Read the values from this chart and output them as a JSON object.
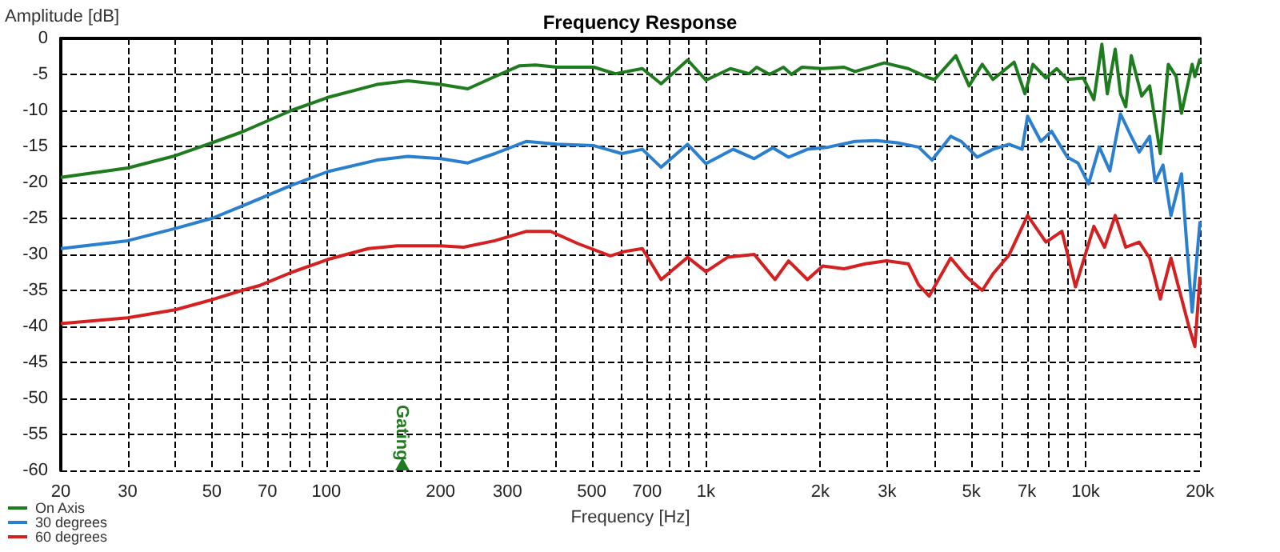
{
  "chart_data": {
    "type": "line",
    "title": "Frequency Response",
    "xlabel": "Frequency [Hz]",
    "ylabel": "Amplitude [dB]",
    "log": "x",
    "grid": true,
    "legend": "bottom left",
    "marker": "none",
    "line_style": "solid",
    "xlim": [
      20,
      20000
    ],
    "ylim": [
      -60,
      0
    ],
    "xticks": [
      20,
      30,
      {
        "value": 40,
        "label": null
      },
      50,
      {
        "value": 60,
        "label": null
      },
      70,
      {
        "value": 80,
        "label": null
      },
      {
        "value": 90,
        "label": null
      },
      100,
      200,
      300,
      {
        "value": 400,
        "label": null
      },
      500,
      {
        "value": 600,
        "label": null
      },
      700,
      {
        "value": 800,
        "label": null
      },
      {
        "value": 900,
        "label": null
      },
      {
        "value": 1000,
        "label": "1k"
      },
      {
        "value": 2000,
        "label": "2k"
      },
      {
        "value": 3000,
        "label": "3k"
      },
      {
        "value": 4000,
        "label": null
      },
      {
        "value": 5000,
        "label": "5k"
      },
      {
        "value": 6000,
        "label": null
      },
      {
        "value": 7000,
        "label": "7k"
      },
      {
        "value": 8000,
        "label": null
      },
      {
        "value": 9000,
        "label": null
      },
      {
        "value": 10000,
        "label": "10k"
      },
      {
        "value": 20000,
        "label": "20k"
      }
    ],
    "yticks": [
      0,
      -5,
      -10,
      -15,
      -20,
      -25,
      -30,
      -35,
      -40,
      -45,
      -50,
      -55,
      -60
    ],
    "annotations": [
      "Gating"
    ],
    "series": [
      {
        "name": "On Axis",
        "color": "#1e7b1e",
        "x": [
          20,
          30,
          40,
          50,
          60,
          81,
          101,
          136,
          164,
          200,
          236,
          278,
          323,
          356,
          405,
          507,
          577,
          680,
          762,
          895,
          1000,
          1160,
          1300,
          1360,
          1470,
          1600,
          1680,
          1790,
          2030,
          2310,
          2470,
          2950,
          3410,
          3870,
          4000,
          4550,
          4930,
          5340,
          5700,
          6480,
          6920,
          7260,
          7860,
          8390,
          8950,
          9860,
          10510,
          11030,
          11400,
          11960,
          12350,
          12750,
          13180,
          14040,
          14740,
          15720,
          16500,
          17310,
          17880,
          19070,
          19390,
          20000
        ],
        "values": [
          -19.3,
          -18,
          -16.3,
          -14.5,
          -13,
          -10,
          -8.2,
          -6.4,
          -5.9,
          -6.4,
          -7,
          -5.3,
          -3.8,
          -3.7,
          -4,
          -4,
          -4.9,
          -4.2,
          -6.3,
          -3,
          -5.8,
          -4.2,
          -4.9,
          -4,
          -5,
          -4,
          -5,
          -4,
          -4.2,
          -4,
          -4.6,
          -3.4,
          -4.2,
          -5.5,
          -5.7,
          -2.4,
          -6.6,
          -3.6,
          -5.7,
          -3.3,
          -7.7,
          -3.6,
          -5.5,
          -4.2,
          -5.7,
          -5.5,
          -8.5,
          -0.8,
          -7.7,
          -1.5,
          -7.7,
          -9.5,
          -2.4,
          -8,
          -6.6,
          -16,
          -3.6,
          -5.3,
          -10.4,
          -3.6,
          -5.3,
          -2.8
        ]
      },
      {
        "name": "30 degrees",
        "color": "#2a7fcf",
        "x": [
          20,
          30,
          40,
          50,
          60,
          81,
          101,
          136,
          164,
          200,
          236,
          278,
          337,
          405,
          507,
          600,
          680,
          762,
          895,
          1000,
          1180,
          1340,
          1500,
          1650,
          1850,
          2100,
          2470,
          2810,
          3190,
          3630,
          3940,
          4410,
          4700,
          5180,
          5700,
          6280,
          6800,
          7030,
          7620,
          8130,
          8950,
          9540,
          10180,
          10860,
          11580,
          12350,
          13180,
          13830,
          14740,
          15230,
          15980,
          16770,
          17880,
          18480,
          19070,
          20000
        ],
        "values": [
          -29.2,
          -28.1,
          -26.4,
          -25,
          -23.3,
          -20.4,
          -18.5,
          -16.9,
          -16.4,
          -16.7,
          -17.3,
          -16,
          -14.3,
          -14.7,
          -14.9,
          -16,
          -15.4,
          -17.9,
          -14.7,
          -17.4,
          -15.4,
          -16.7,
          -15.2,
          -16.5,
          -15.4,
          -15.1,
          -14.3,
          -14.2,
          -14.5,
          -15.1,
          -16.9,
          -13.6,
          -14.3,
          -16.5,
          -15.4,
          -14.7,
          -15.4,
          -10.8,
          -14.3,
          -12.9,
          -16.5,
          -17.3,
          -20.2,
          -15.1,
          -18.4,
          -10.5,
          -13.6,
          -15.8,
          -13.6,
          -19.9,
          -17.6,
          -24.6,
          -18.8,
          -29,
          -38,
          -25.4
        ]
      },
      {
        "name": "60 degrees",
        "color": "#d42020",
        "x": [
          20,
          30,
          40,
          50,
          60,
          67,
          81,
          101,
          129,
          154,
          200,
          230,
          278,
          337,
          390,
          460,
          560,
          610,
          680,
          762,
          895,
          1000,
          1140,
          1340,
          1520,
          1650,
          1850,
          2030,
          2310,
          2630,
          2990,
          3410,
          3630,
          3870,
          4410,
          4850,
          5340,
          5700,
          6280,
          7030,
          7860,
          8660,
          9400,
          10510,
          11210,
          11960,
          12750,
          13830,
          14740,
          15720,
          16770,
          18760,
          19390,
          20000
        ],
        "values": [
          -39.6,
          -38.8,
          -37.7,
          -36.3,
          -35,
          -34.3,
          -32.5,
          -30.7,
          -29.2,
          -28.8,
          -28.8,
          -29,
          -28.1,
          -26.8,
          -26.8,
          -28.5,
          -30.2,
          -29.6,
          -29.2,
          -33.5,
          -30.4,
          -32.4,
          -30.4,
          -30,
          -33.5,
          -30.9,
          -33.5,
          -31.6,
          -32,
          -31.3,
          -30.9,
          -31.3,
          -34.2,
          -35.8,
          -30.5,
          -33.1,
          -35,
          -32.7,
          -30.1,
          -24.6,
          -28.3,
          -26.8,
          -34.5,
          -26.1,
          -29,
          -24.6,
          -29,
          -28.3,
          -30.5,
          -36.2,
          -30.5,
          -40.3,
          -42.8,
          -33.1
        ]
      }
    ]
  }
}
